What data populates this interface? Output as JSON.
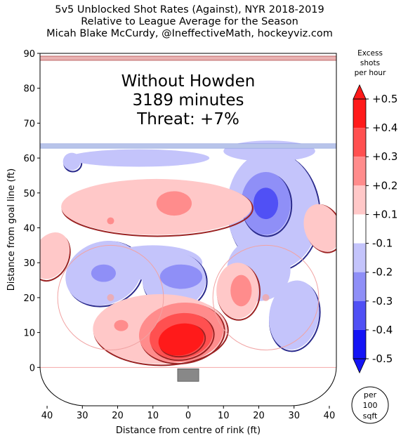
{
  "title": {
    "line1": "5v5 Unblocked Shot Rates (Against), NYR 2018-2019",
    "line2": "Relative to League Average for the Season",
    "line3": "Micah Blake McCurdy, @IneffectiveMath, hockeyviz.com"
  },
  "chart_data": {
    "type": "heatmap",
    "subtype": "shot-rate contour map on half-rink",
    "annotation": [
      "Without Howden",
      "3189 minutes",
      "Threat: +7%"
    ],
    "xlabel": "Distance from centre of rink (ft)",
    "ylabel": "Distance from goal line (ft)",
    "xlim": [
      42,
      -42
    ],
    "ylim": [
      -11,
      90
    ],
    "xticks": [
      40,
      30,
      20,
      10,
      0,
      10,
      20,
      30,
      40
    ],
    "yticks": [
      0,
      10,
      20,
      30,
      40,
      50,
      60,
      70,
      80,
      90
    ],
    "colorbar": {
      "title": [
        "Excess",
        "shots",
        "per hour"
      ],
      "tick_labels": [
        "+0.5",
        "+0.4",
        "+0.3",
        "+0.2",
        "+0.1",
        "-0.1",
        "-0.2",
        "-0.3",
        "-0.4",
        "-0.5"
      ],
      "levels": [
        0.5,
        0.4,
        0.3,
        0.2,
        0.1,
        -0.1,
        -0.2,
        -0.3,
        -0.4,
        -0.5
      ],
      "colors": [
        "#ff1a1a",
        "#ff5050",
        "#ff8c8c",
        "#ffc8c8",
        "#ffffff",
        "#c4c4fb",
        "#8f8ff7",
        "#5050f5",
        "#1414f5"
      ]
    },
    "scale_badge": [
      "per",
      "100",
      "sqft"
    ],
    "regions": [
      {
        "name": "slot-hot",
        "x": 2,
        "y": 7,
        "level": 0.5,
        "sign": "positive"
      },
      {
        "name": "slot-low",
        "x": 0,
        "y": 10,
        "level": 0.2,
        "sign": "positive"
      },
      {
        "name": "left-crease",
        "x": 19,
        "y": 12,
        "level": 0.2,
        "sign": "positive"
      },
      {
        "name": "right-circle",
        "x": -15,
        "y": 22,
        "level": 0.2,
        "sign": "positive"
      },
      {
        "name": "upper-left-slot",
        "x": 19,
        "y": 42,
        "level": 0.1,
        "sign": "positive"
      },
      {
        "name": "upper-mid",
        "x": 3,
        "y": 47,
        "level": 0.2,
        "sign": "positive"
      },
      {
        "name": "left-boards",
        "x": 40,
        "y": 33,
        "level": 0.1,
        "sign": "positive"
      },
      {
        "name": "right-boards",
        "x": -38,
        "y": 41,
        "level": 0.1,
        "sign": "positive"
      },
      {
        "name": "right-point",
        "x": -22,
        "y": 47,
        "level": -0.3,
        "sign": "negative"
      },
      {
        "name": "left-faceoff",
        "x": 24,
        "y": 27,
        "level": -0.2,
        "sign": "negative"
      },
      {
        "name": "mid-circle",
        "x": 3,
        "y": 26,
        "level": -0.2,
        "sign": "negative"
      },
      {
        "name": "left-point",
        "x": 33,
        "y": 59,
        "level": -0.1,
        "sign": "negative"
      },
      {
        "name": "right-low",
        "x": -28,
        "y": 17,
        "level": -0.1,
        "sign": "negative"
      }
    ]
  }
}
